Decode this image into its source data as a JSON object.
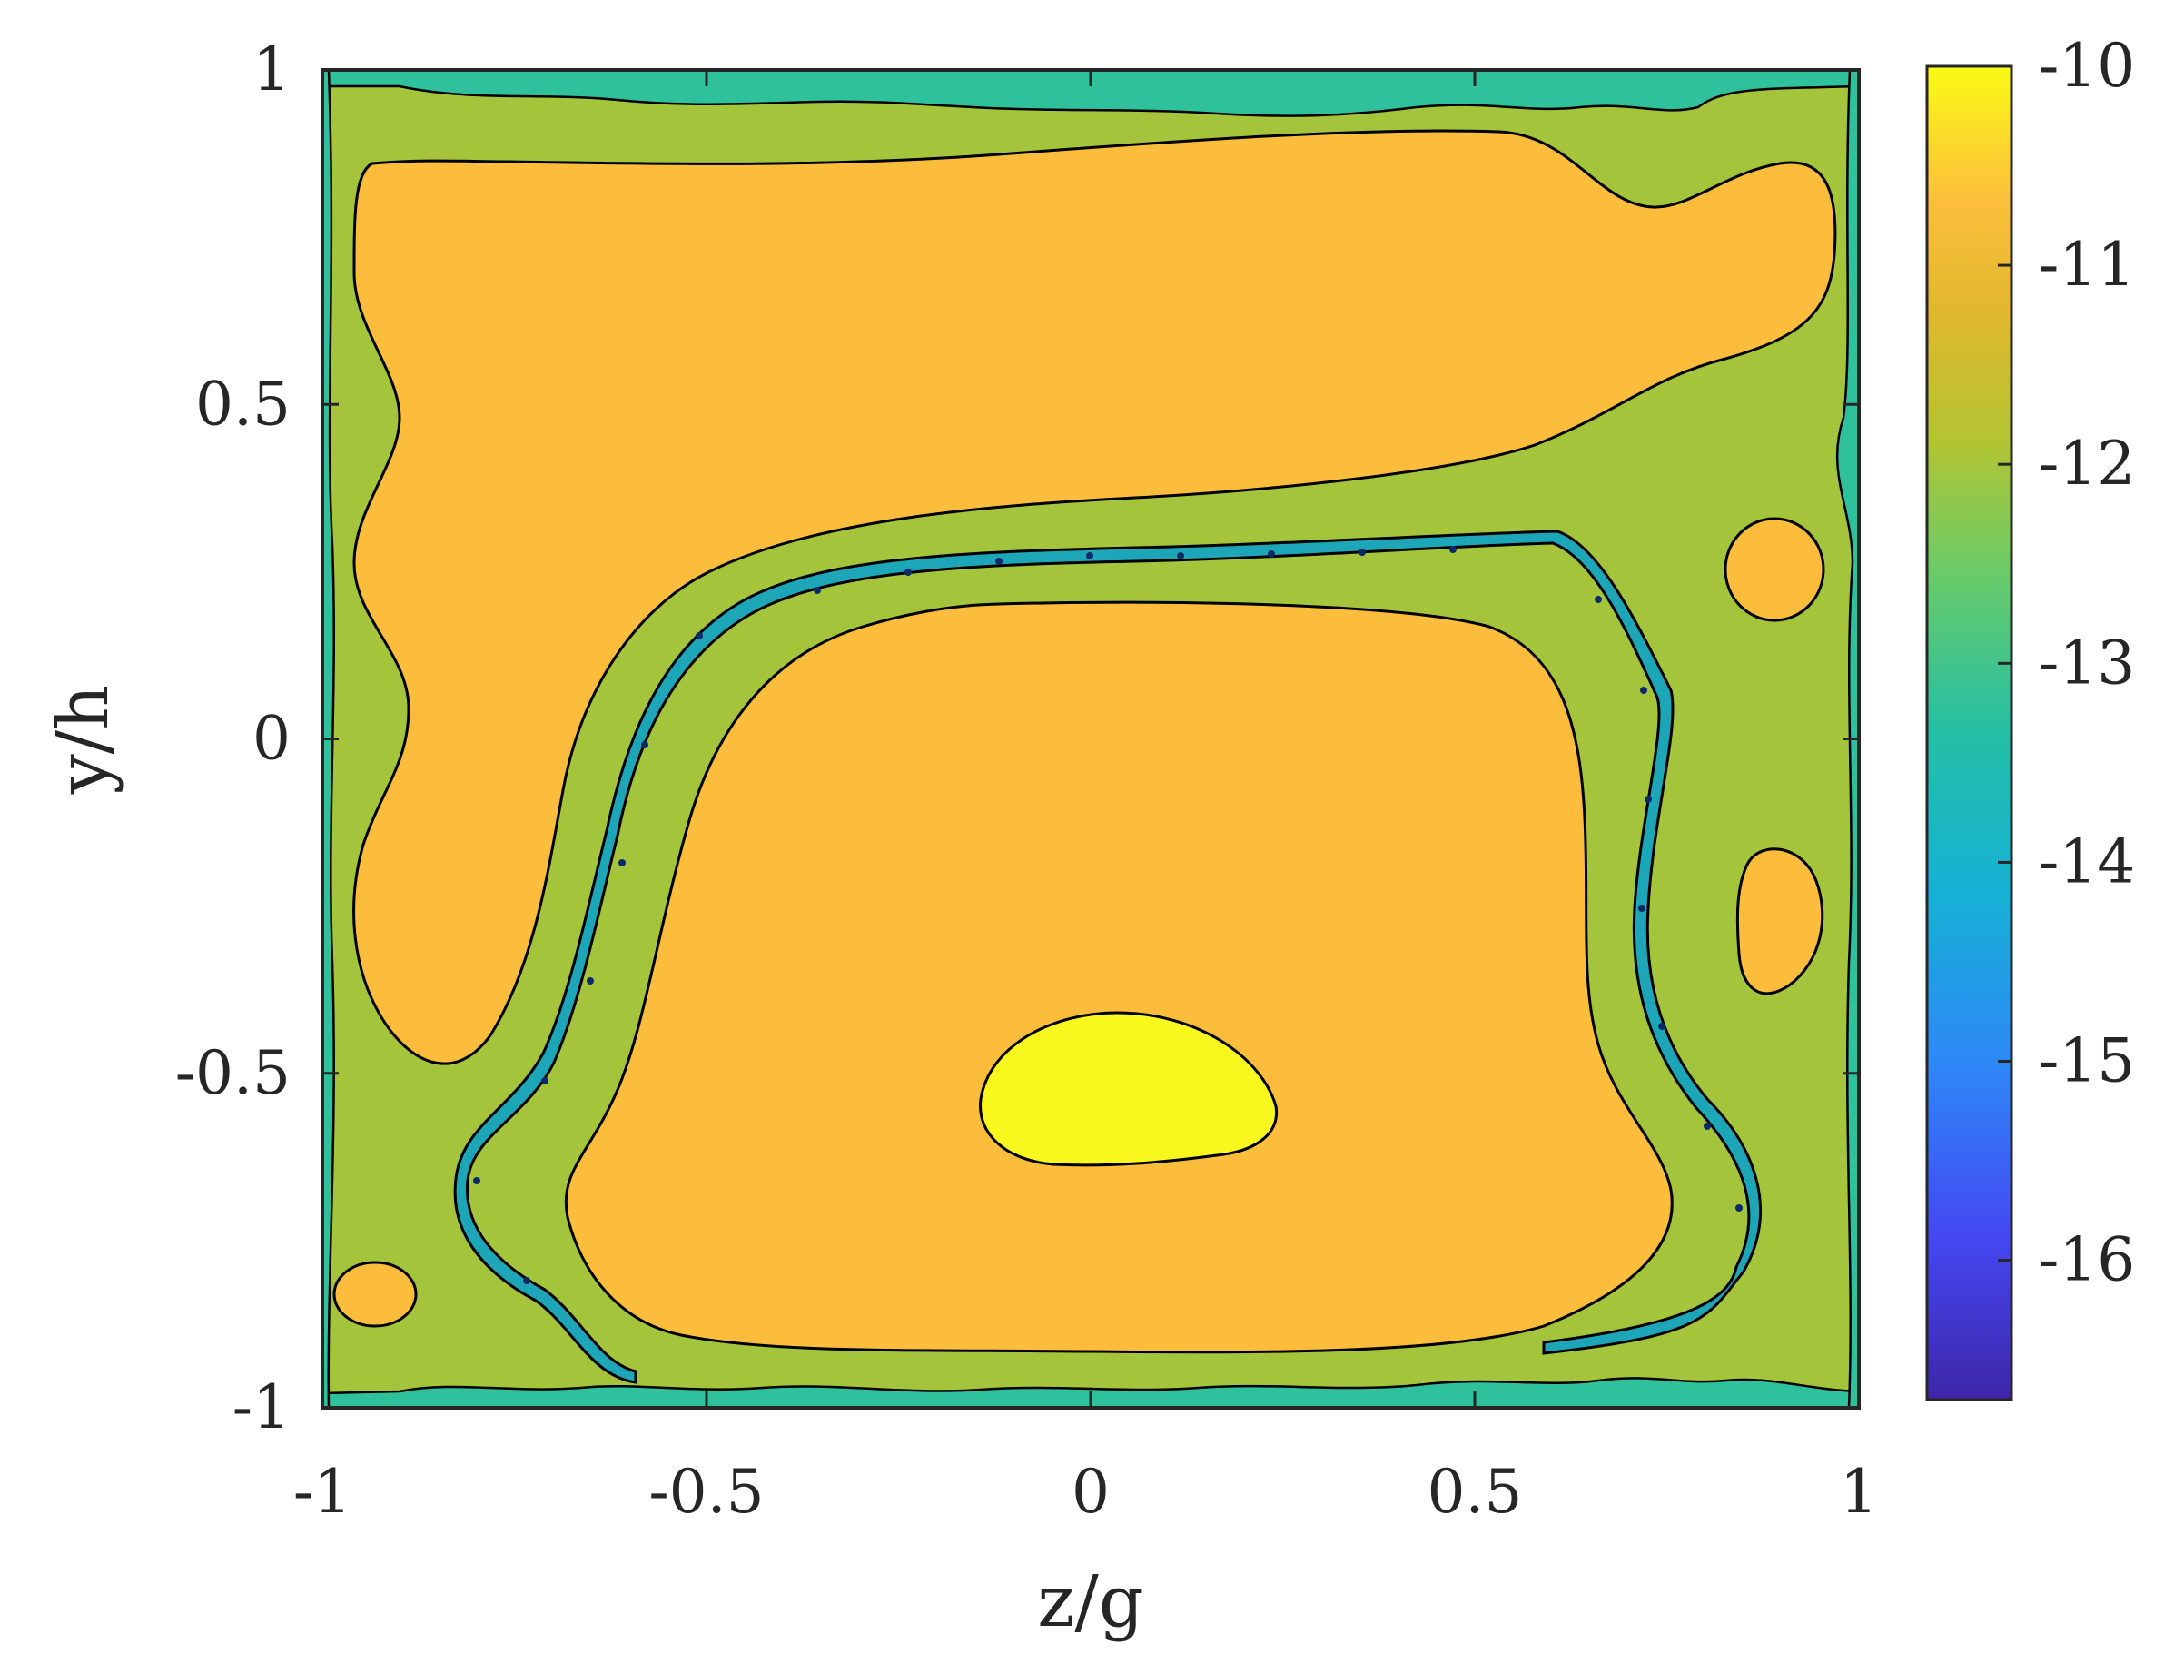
{
  "chart_data": {
    "type": "contour",
    "xlabel": "z/g",
    "ylabel": "y/h",
    "xlim": [
      -1,
      1
    ],
    "ylim": [
      -1,
      1
    ],
    "x_ticks": [
      "-1",
      "-0.5",
      "0",
      "0.5",
      "1"
    ],
    "y_ticks": [
      "-1",
      "-0.5",
      "0",
      "0.5",
      "1"
    ],
    "colorbar": {
      "range": [
        -16.7,
        -10
      ],
      "ticks": [
        "-10",
        "-11",
        "-12",
        "-13",
        "-14",
        "-15",
        "-16"
      ],
      "colormap": "parula"
    },
    "contour_levels": [
      -10.5,
      -11.5,
      -12.5,
      -13.5
    ],
    "level_colors": {
      "background": "#a4c43c",
      "near_wall": "#2fc19c",
      "channel": "#1ca6b8",
      "core": "#fbbd3b",
      "peak": "#f8f81e"
    },
    "regions": [
      {
        "name": "upper-core",
        "level": -11,
        "centroid": [
          -0.2,
          0.55
        ]
      },
      {
        "name": "lower-core",
        "level": -11,
        "centroid": [
          0.1,
          -0.35
        ]
      },
      {
        "name": "peak",
        "level": -10.2,
        "centroid": [
          0.05,
          -0.55
        ]
      },
      {
        "name": "right-blob-upper",
        "level": -11,
        "centroid": [
          0.9,
          0.25
        ]
      },
      {
        "name": "right-blob-lower",
        "level": -11,
        "centroid": [
          0.9,
          -0.25
        ]
      },
      {
        "name": "left-bottom-blob",
        "level": -11,
        "centroid": [
          -0.93,
          -0.84
        ]
      }
    ]
  }
}
